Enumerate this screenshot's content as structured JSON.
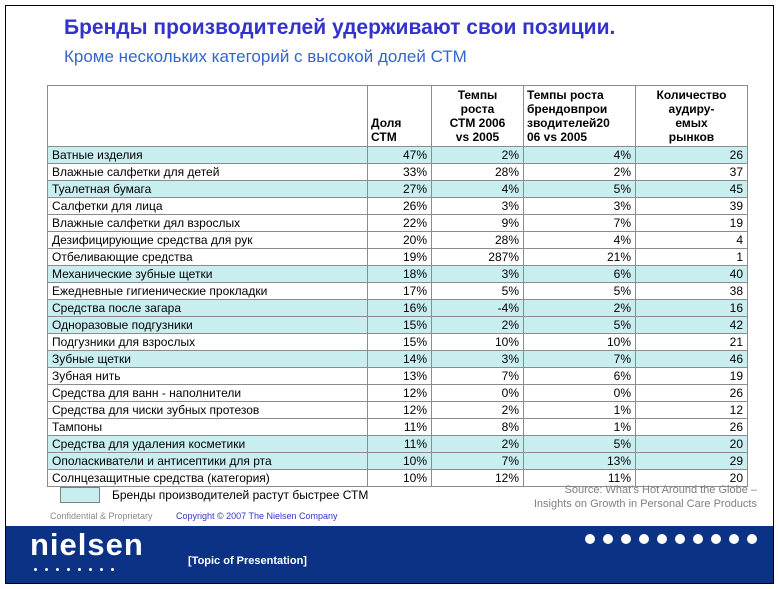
{
  "slide": {
    "title": "Бренды производителей удерживают свои позиции.",
    "subtitle": "Кроме нескольких категорий с высокой долей СТМ"
  },
  "colors": {
    "title_blue": "#3333cc",
    "subtitle_blue": "#3366cc",
    "footer_bar": "#0c3286",
    "highlight": "#c9eef0",
    "copyright_blue": "#3333cc"
  },
  "table": {
    "headers": [
      "",
      "Доля СТМ",
      "Темпы\nроста\nСТМ 2006\nvs 2005",
      "Темпы роста\nбрендовпрои\nзводителей20\n06 vs 2005",
      "Количество\nаудиру-\nемых\nрынков"
    ],
    "rows": [
      {
        "category": "Ватные изделия",
        "ctm_share": "47%",
        "ctm_growth": "2%",
        "brand_growth": "4%",
        "markets": "26",
        "highlight": true
      },
      {
        "category": "Влажные салфетки для детей",
        "ctm_share": "33%",
        "ctm_growth": "28%",
        "brand_growth": "2%",
        "markets": "37",
        "highlight": false
      },
      {
        "category": "Туалетная бумага",
        "ctm_share": "27%",
        "ctm_growth": "4%",
        "brand_growth": "5%",
        "markets": "45",
        "highlight": true
      },
      {
        "category": "Салфетки для лица",
        "ctm_share": "26%",
        "ctm_growth": "3%",
        "brand_growth": "3%",
        "markets": "39",
        "highlight": false
      },
      {
        "category": "Влажные салфетки дял взрослых",
        "ctm_share": "22%",
        "ctm_growth": "9%",
        "brand_growth": "7%",
        "markets": "19",
        "highlight": false
      },
      {
        "category": "Дезифицирующие средства для рук",
        "ctm_share": "20%",
        "ctm_growth": "28%",
        "brand_growth": "4%",
        "markets": "4",
        "highlight": false
      },
      {
        "category": "Отбеливающие средства",
        "ctm_share": "19%",
        "ctm_growth": "287%",
        "brand_growth": "21%",
        "markets": "1",
        "highlight": false
      },
      {
        "category": "Механические зубные щетки",
        "ctm_share": "18%",
        "ctm_growth": "3%",
        "brand_growth": "6%",
        "markets": "40",
        "highlight": true
      },
      {
        "category": "Ежедневные гигиенические прокладки",
        "ctm_share": "17%",
        "ctm_growth": "5%",
        "brand_growth": "5%",
        "markets": "38",
        "highlight": false
      },
      {
        "category": "Средства после загара",
        "ctm_share": "16%",
        "ctm_growth": "-4%",
        "brand_growth": "2%",
        "markets": "16",
        "highlight": true
      },
      {
        "category": "Одноразовые подгузники",
        "ctm_share": "15%",
        "ctm_growth": "2%",
        "brand_growth": "5%",
        "markets": "42",
        "highlight": true
      },
      {
        "category": "Подгузники для взрослых",
        "ctm_share": "15%",
        "ctm_growth": "10%",
        "brand_growth": "10%",
        "markets": "21",
        "highlight": false
      },
      {
        "category": "Зубные щетки",
        "ctm_share": "14%",
        "ctm_growth": "3%",
        "brand_growth": "7%",
        "markets": "46",
        "highlight": true
      },
      {
        "category": "Зубная нить",
        "ctm_share": "13%",
        "ctm_growth": "7%",
        "brand_growth": "6%",
        "markets": "19",
        "highlight": false
      },
      {
        "category": "Средства для ванн - наполнители",
        "ctm_share": "12%",
        "ctm_growth": "0%",
        "brand_growth": "0%",
        "markets": "26",
        "highlight": false
      },
      {
        "category": "Средства для чиски зубных протезов",
        "ctm_share": "12%",
        "ctm_growth": "2%",
        "brand_growth": "1%",
        "markets": "12",
        "highlight": false
      },
      {
        "category": "Тампоны",
        "ctm_share": "11%",
        "ctm_growth": "8%",
        "brand_growth": "1%",
        "markets": "26",
        "highlight": false
      },
      {
        "category": "Средства для удаления косметики",
        "ctm_share": "11%",
        "ctm_growth": "2%",
        "brand_growth": "5%",
        "markets": "20",
        "highlight": true
      },
      {
        "category": "Ополаскиватели и антисептики для рта",
        "ctm_share": "10%",
        "ctm_growth": "7%",
        "brand_growth": "13%",
        "markets": "29",
        "highlight": true
      },
      {
        "category": "Солнцезащитные средства (категория)",
        "ctm_share": "10%",
        "ctm_growth": "12%",
        "brand_growth": "11%",
        "markets": "20",
        "highlight": false
      }
    ]
  },
  "legend": {
    "label": "Бренды производителей растут быстрее СТМ"
  },
  "source": {
    "line1": "Source: What’s Hot Around the Globe –",
    "line2": "Insights on Growth in Personal Care Products"
  },
  "meta": {
    "confidential": "Confidential & Proprietary",
    "copyright": "Copyright © 2007 The Nielsen Company"
  },
  "footer": {
    "logo": "nielsen",
    "topic": "[Topic of Presentation]",
    "logo_dot_count": 8,
    "deco_dot_count": 10
  }
}
